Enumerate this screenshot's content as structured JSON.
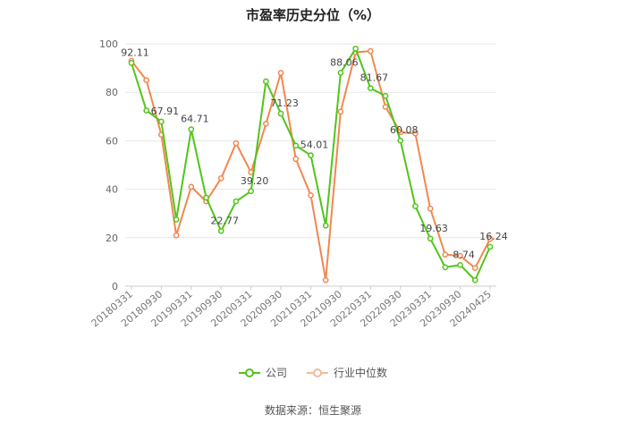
{
  "chart_data": {
    "type": "line",
    "title": "市盈率历史分位（%）",
    "source_text": "数据来源：恒生聚源",
    "ylim": [
      0,
      100
    ],
    "yticks": [
      "0",
      "20",
      "40",
      "60",
      "80",
      "100"
    ],
    "x_tick_labels": [
      "20180331",
      "20180930",
      "20190331",
      "20190930",
      "20200331",
      "20200930",
      "20210331",
      "20210930",
      "20220331",
      "20220930",
      "20230331",
      "20230930",
      "20240425"
    ],
    "x": [
      "20180331",
      "20180630",
      "20180930",
      "20181231",
      "20190331",
      "20190630",
      "20190930",
      "20191231",
      "20200331",
      "20200630",
      "20200930",
      "20201231",
      "20210331",
      "20210630",
      "20210930",
      "20211231",
      "20220331",
      "20220630",
      "20220930",
      "20221231",
      "20230331",
      "20230630",
      "20230930",
      "20231231",
      "20240425"
    ],
    "series": [
      {
        "name": "公司",
        "color": "#52c41a",
        "values": [
          92.11,
          72.5,
          67.91,
          27.5,
          64.71,
          36.5,
          22.77,
          35.0,
          39.2,
          84.5,
          71.23,
          58.0,
          54.01,
          25.0,
          88.06,
          98.0,
          81.67,
          78.5,
          60.08,
          33.0,
          19.63,
          7.8,
          8.74,
          2.5,
          16.24
        ],
        "labels": {
          "0": "92.11",
          "2": "67.91",
          "4": "64.71",
          "6": "22.77",
          "8": "39.20",
          "10": "71.23",
          "12": "54.01",
          "14": "88.06",
          "16": "81.67",
          "18": "60.08",
          "20": "19.63",
          "22": "8.74",
          "24": "16.24"
        }
      },
      {
        "name": "行业中位数",
        "color": "#f08850",
        "values": [
          93.0,
          85.0,
          62.5,
          21.0,
          41.0,
          35.0,
          44.5,
          59.0,
          47.0,
          67.0,
          88.0,
          52.5,
          37.5,
          2.5,
          72.0,
          96.5,
          97.0,
          74.0,
          63.5,
          63.0,
          32.0,
          13.0,
          12.5,
          7.5,
          19.5
        ]
      }
    ]
  }
}
